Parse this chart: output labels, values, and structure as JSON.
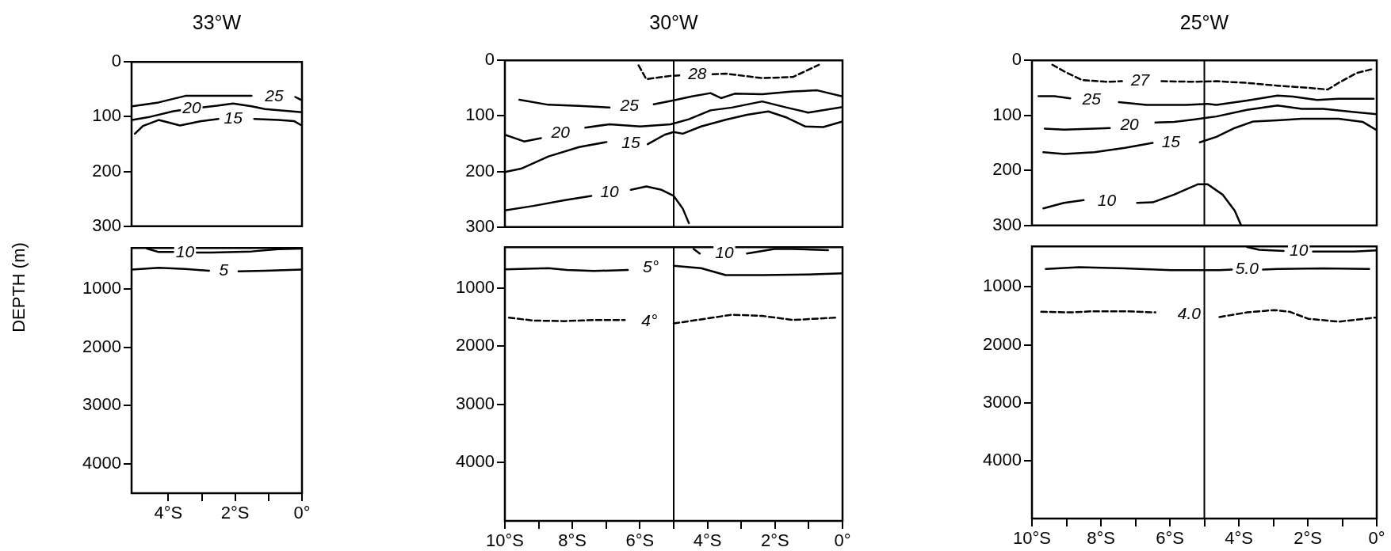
{
  "chart_data": [
    {
      "type": "line",
      "title": "33°W",
      "xlim": [
        -5.1,
        0
      ],
      "ylim": [
        300,
        0
      ],
      "yticks": [
        0,
        100,
        200,
        300
      ],
      "tick_labels": "y",
      "series": [
        {
          "name": "25",
          "color": "#000000",
          "x": [
            -5.08,
            -4.29,
            -3.49,
            -2.7,
            -1.51,
            -0.83,
            -0.2,
            -0.04
          ],
          "values": [
            81,
            74,
            62,
            62,
            62,
            null,
            64,
            69
          ]
        },
        {
          "name": "20",
          "color": "#000000",
          "x": [
            -5.08,
            -4.6,
            -3.85,
            -3.6,
            -3.3,
            -3.0,
            -2.54,
            -2.06,
            -1.51,
            -1.11,
            -0.56,
            0
          ],
          "values": [
            106,
            101,
            90,
            88,
            null,
            83,
            80,
            76,
            81,
            86,
            89,
            92
          ]
        },
        {
          "name": "15",
          "color": "#000000",
          "x": [
            -5.0,
            -4.76,
            -4.29,
            -3.65,
            -3.02,
            -2.5,
            -2.06,
            -1.43,
            -0.71,
            -0.24,
            -0.04
          ],
          "values": [
            131,
            117,
            106,
            116,
            108,
            104,
            null,
            104,
            106,
            108,
            115
          ]
        }
      ]
    },
    {
      "type": "line",
      "title": "30°W",
      "xlim": [
        -10,
        0
      ],
      "ylim": [
        300,
        0
      ],
      "yticks": [
        0,
        100,
        200,
        300
      ],
      "tick_labels": "y",
      "ref_lines": [
        {
          "axis": "x",
          "value": -5,
          "color": "#000000"
        }
      ],
      "series": [
        {
          "name": "28",
          "color": "#000000",
          "line_style": "dashed",
          "x": [
            -6.04,
            -5.81,
            -5.09,
            -4.75,
            -4.3,
            -3.85,
            -3.46,
            -2.38,
            -1.47,
            -0.7
          ],
          "values": [
            9,
            34,
            28,
            27,
            null,
            25,
            24,
            32,
            30,
            8
          ]
        },
        {
          "name": "25",
          "color": "#000000",
          "x": [
            -9.57,
            -8.71,
            -7.8,
            -6.9,
            -6.31,
            -5.59,
            -5.0,
            -4.46,
            -3.91,
            -3.6,
            -3.19,
            -2.38,
            -1.47,
            -0.75,
            0
          ],
          "values": [
            71,
            80,
            82,
            85,
            null,
            79,
            72,
            65,
            59,
            68,
            60,
            61,
            56,
            54,
            65
          ]
        },
        {
          "name": "20",
          "color": "#000000",
          "x": [
            -10,
            -9.43,
            -8.93,
            -8.35,
            -7.62,
            -6.9,
            -5.99,
            -5.09,
            -4.55,
            -3.91,
            -3.28,
            -2.38,
            -1.65,
            -1.02,
            0
          ],
          "values": [
            134,
            146,
            140,
            null,
            121,
            115,
            119,
            115,
            106,
            90,
            85,
            74,
            85,
            94,
            84
          ]
        },
        {
          "name": "15",
          "color": "#000000",
          "x": [
            -10,
            -9.52,
            -8.71,
            -7.8,
            -6.99,
            -6.27,
            -5.77,
            -5.27,
            -5.0,
            -4.73,
            -4.19,
            -3.46,
            -2.83,
            -2.2,
            -1.65,
            -1.11,
            -0.57,
            0
          ],
          "values": [
            201,
            195,
            173,
            156,
            147,
            null,
            151,
            134,
            129,
            132,
            119,
            107,
            98,
            92,
            103,
            119,
            120,
            110
          ]
        },
        {
          "name": "10",
          "color": "#000000",
          "x": [
            -10,
            -9.16,
            -8.25,
            -7.44,
            -6.9,
            -6.27,
            -5.81,
            -5.36,
            -5.0,
            -4.73,
            -4.55
          ],
          "values": [
            270,
            262,
            252,
            244,
            null,
            233,
            227,
            233,
            244,
            267,
            293
          ]
        }
      ]
    },
    {
      "type": "line",
      "title": "25°W",
      "xlim": [
        -10,
        0
      ],
      "ylim": [
        300,
        0
      ],
      "yticks": [
        0,
        100,
        200,
        300
      ],
      "tick_labels": "y",
      "ref_lines": [
        {
          "axis": "x",
          "value": -5,
          "color": "#000000"
        }
      ],
      "series": [
        {
          "name": "27",
          "color": "#000000",
          "line_style": "dashed",
          "x": [
            -9.41,
            -9.07,
            -8.54,
            -7.83,
            -7.39,
            -6.86,
            -6.24,
            -5.27,
            -4.65,
            -3.76,
            -2.88,
            -1.99,
            -1.42,
            -1.11,
            -0.58,
            -0.13
          ],
          "values": [
            8,
            20,
            36,
            39,
            38,
            null,
            38,
            39,
            38,
            41,
            46,
            50,
            53,
            41,
            23,
            16
          ]
        },
        {
          "name": "25",
          "color": "#000000",
          "x": [
            -9.81,
            -9.35,
            -8.89,
            -8.27,
            -7.48,
            -6.68,
            -5.53,
            -4.91,
            -4.65,
            -3.76,
            -2.88,
            -2.43,
            -1.73,
            -1.11,
            -0.09
          ],
          "values": [
            65,
            65,
            69,
            null,
            76,
            81,
            81,
            79,
            81,
            73,
            64,
            66,
            72,
            70,
            70
          ]
        },
        {
          "name": "20",
          "color": "#000000",
          "x": [
            -9.63,
            -9.07,
            -8.19,
            -7.74,
            -7.17,
            -6.42,
            -5.88,
            -5.35,
            -4.65,
            -3.76,
            -2.88,
            -2.17,
            -1.55,
            -0.66,
            0
          ],
          "values": [
            124,
            126,
            124,
            123,
            null,
            113,
            112,
            108,
            102,
            90,
            82,
            88,
            88,
            94,
            98
          ]
        },
        {
          "name": "15",
          "color": "#000000",
          "x": [
            -9.67,
            -9.07,
            -8.19,
            -7.3,
            -6.5,
            -5.97,
            -5.13,
            -4.65,
            -4.12,
            -3.58,
            -2.88,
            -2.17,
            -1.11,
            -0.4,
            0
          ],
          "values": [
            167,
            170,
            167,
            159,
            150,
            null,
            149,
            139,
            123,
            111,
            109,
            106,
            106,
            112,
            127
          ]
        },
        {
          "name": "10",
          "color": "#000000",
          "x": [
            -9.67,
            -9.07,
            -8.5,
            -7.83,
            -6.95,
            -6.5,
            -5.88,
            -5.18,
            -4.91,
            -4.47,
            -4.12,
            -3.94
          ],
          "values": [
            269,
            259,
            254,
            null,
            259,
            258,
            244,
            225,
            225,
            244,
            273,
            299
          ]
        }
      ]
    },
    {
      "type": "line",
      "ylabel": "DEPTH (m)",
      "xlim": [
        -5.1,
        0
      ],
      "ylim": [
        4500,
        300
      ],
      "yticks": [
        1000,
        2000,
        3000,
        4000
      ],
      "xticks": [
        {
          "value": -4,
          "label": "4°S"
        },
        {
          "value": -3,
          "label": null
        },
        {
          "value": -2,
          "label": "2°S"
        },
        {
          "value": -1,
          "label": null
        },
        {
          "value": 0,
          "label": "0°"
        }
      ],
      "series": [
        {
          "name": "10",
          "color": "#000000",
          "x": [
            -4.64,
            -4.29,
            -3.85,
            -3.5,
            -3.15,
            -2.7,
            -1.51,
            -0.71,
            0
          ],
          "values": [
            310,
            370,
            370,
            null,
            380,
            380,
            360,
            320,
            310
          ]
        },
        {
          "name": "5",
          "color": "#000000",
          "x": [
            -5.08,
            -4.29,
            -3.49,
            -2.78,
            -2.34,
            -1.9,
            -1.11,
            0
          ],
          "values": [
            670,
            640,
            660,
            690,
            null,
            700,
            690,
            670
          ]
        }
      ]
    },
    {
      "type": "line",
      "xlim": [
        -10,
        0
      ],
      "ylim": [
        5000,
        300
      ],
      "yticks": [
        1000,
        2000,
        3000,
        4000
      ],
      "xticks": [
        {
          "value": -10,
          "label": "10°S"
        },
        {
          "value": -9,
          "label": null
        },
        {
          "value": -8,
          "label": "8°S"
        },
        {
          "value": -7,
          "label": null
        },
        {
          "value": -6,
          "label": "6°S"
        },
        {
          "value": -5,
          "label": null
        },
        {
          "value": -4,
          "label": "4°S"
        },
        {
          "value": -3,
          "label": null
        },
        {
          "value": -2,
          "label": "2°S"
        },
        {
          "value": -1,
          "label": null
        },
        {
          "value": 0,
          "label": "0°"
        }
      ],
      "ref_lines": [
        {
          "axis": "x",
          "value": -5,
          "color": "#000000"
        }
      ],
      "series": [
        {
          "name": "10",
          "color": "#000000",
          "x": [
            -4.41,
            -4.23,
            -3.5,
            -2.83,
            -2.02,
            -1.47,
            -0.43
          ],
          "values": [
            330,
            410,
            null,
            410,
            330,
            330,
            350
          ]
        },
        {
          "name": "5°",
          "color": "#000000",
          "x": [
            -10,
            -8.71,
            -8.16,
            -7.35,
            -6.36,
            -5.68,
            -5.0,
            -4.19,
            -3.46,
            -2.38,
            -1.02,
            0
          ],
          "values": [
            680,
            660,
            690,
            710,
            690,
            null,
            620,
            660,
            780,
            780,
            770,
            750
          ]
        },
        {
          "name": "4°",
          "color": "#000000",
          "line_style": "dashed",
          "x": [
            -9.88,
            -9.16,
            -8.25,
            -7.35,
            -6.45,
            -5.72,
            -5.0,
            -4.19,
            -3.28,
            -2.38,
            -1.47,
            -0.21
          ],
          "values": [
            1510,
            1560,
            1570,
            1550,
            1550,
            null,
            1610,
            1540,
            1460,
            1480,
            1550,
            1510
          ]
        }
      ]
    },
    {
      "type": "line",
      "xlim": [
        -10,
        0
      ],
      "ylim": [
        5000,
        300
      ],
      "yticks": [
        1000,
        2000,
        3000,
        4000
      ],
      "xticks": [
        {
          "value": -10,
          "label": "10°S"
        },
        {
          "value": -9,
          "label": null
        },
        {
          "value": -8,
          "label": "8°S"
        },
        {
          "value": -7,
          "label": null
        },
        {
          "value": -6,
          "label": "6°S"
        },
        {
          "value": -5,
          "label": null
        },
        {
          "value": -4,
          "label": "4°S"
        },
        {
          "value": -3,
          "label": null
        },
        {
          "value": -2,
          "label": "2°S"
        },
        {
          "value": -1,
          "label": null
        },
        {
          "value": 0,
          "label": "0°"
        }
      ],
      "ref_lines": [
        {
          "axis": "x",
          "value": -5,
          "color": "#000000"
        }
      ],
      "series": [
        {
          "name": "10",
          "color": "#000000",
          "x": [
            -3.76,
            -3.41,
            -2.7,
            -2.26,
            -1.85,
            -1.68,
            -0.66,
            0
          ],
          "values": [
            310,
            360,
            380,
            null,
            390,
            390,
            390,
            370
          ]
        },
        {
          "name": "5.0",
          "color": "#000000",
          "x": [
            -9.6,
            -8.63,
            -7.3,
            -5.97,
            -4.96,
            -4.56,
            -4.2,
            -3.76,
            -3.3,
            -2.88,
            -1.55,
            -0.22
          ],
          "values": [
            690,
            660,
            680,
            710,
            710,
            710,
            700,
            null,
            700,
            690,
            680,
            690
          ]
        },
        {
          "name": "4.0",
          "color": "#000000",
          "line_style": "dashed",
          "x": [
            -9.73,
            -8.89,
            -8.19,
            -7.3,
            -6.42,
            -5.44,
            -4.56,
            -3.76,
            -2.96,
            -2.52,
            -1.99,
            -1.11,
            -0.04
          ],
          "values": [
            1430,
            1440,
            1420,
            1420,
            1440,
            null,
            1520,
            1440,
            1400,
            1430,
            1550,
            1600,
            1530
          ]
        }
      ]
    }
  ]
}
